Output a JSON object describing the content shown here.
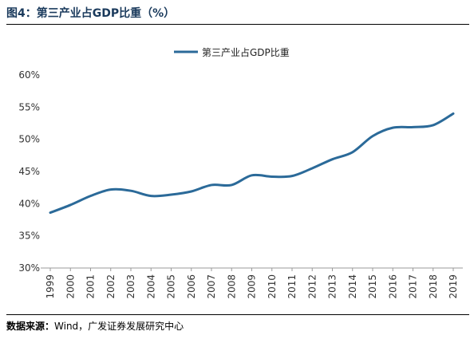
{
  "figure": {
    "title": "图4：第三产业占GDP比重（%）"
  },
  "source": {
    "label": "数据来源：",
    "text": "Wind，广发证券发展研究中心"
  },
  "chart_data": {
    "type": "line",
    "title": "",
    "xlabel": "",
    "ylabel": "",
    "legend_position": "top-center",
    "grid": false,
    "ylim": [
      30,
      60
    ],
    "y_ticks": [
      "30%",
      "35%",
      "40%",
      "45%",
      "50%",
      "55%",
      "60%"
    ],
    "y_tick_values": [
      30,
      35,
      40,
      45,
      50,
      55,
      60
    ],
    "categories": [
      "1999",
      "2000",
      "2001",
      "2002",
      "2003",
      "2004",
      "2005",
      "2006",
      "2007",
      "2008",
      "2009",
      "2010",
      "2011",
      "2012",
      "2013",
      "2014",
      "2015",
      "2016",
      "2017",
      "2018",
      "2019"
    ],
    "series": [
      {
        "name": "第三产业占GDP比重",
        "color": "#2b6a99",
        "values": [
          38.6,
          39.8,
          41.2,
          42.2,
          42.0,
          41.2,
          41.4,
          41.9,
          42.9,
          42.9,
          44.4,
          44.2,
          44.3,
          45.5,
          46.9,
          48.0,
          50.5,
          51.8,
          51.9,
          52.2,
          54.0
        ]
      }
    ]
  }
}
